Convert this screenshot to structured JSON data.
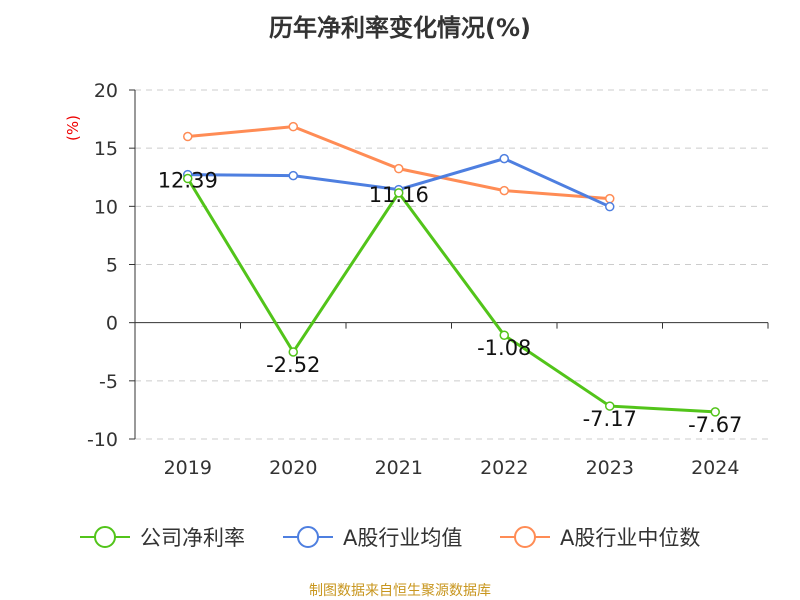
{
  "chart_data": {
    "type": "line",
    "title": "历年净利率变化情况(%)",
    "ylabel": "(%)",
    "xlabel": "",
    "categories": [
      "2019",
      "2020",
      "2021",
      "2022",
      "2023",
      "2024"
    ],
    "ylim": [
      -10,
      20
    ],
    "yticks": [
      20,
      15,
      10,
      5,
      0,
      -5,
      -10
    ],
    "grid": true,
    "legend_position": "bottom",
    "series": [
      {
        "name": "公司净利率",
        "color": "#52c41a",
        "values": [
          12.39,
          -2.52,
          11.16,
          -1.08,
          -7.17,
          -7.67
        ],
        "labels": [
          "12.39",
          "-2.52",
          "11.16",
          "-1.08",
          "-7.17",
          "-7.67"
        ]
      },
      {
        "name": "A股行业均值",
        "color": "#4e7fe0",
        "values": [
          12.73,
          12.64,
          11.44,
          14.1,
          9.97,
          null
        ]
      },
      {
        "name": "A股行业中位数",
        "color": "#ff8c55",
        "values": [
          16.0,
          16.85,
          13.24,
          11.35,
          10.66,
          null
        ]
      }
    ]
  },
  "footer": "制图数据来自恒生聚源数据库"
}
